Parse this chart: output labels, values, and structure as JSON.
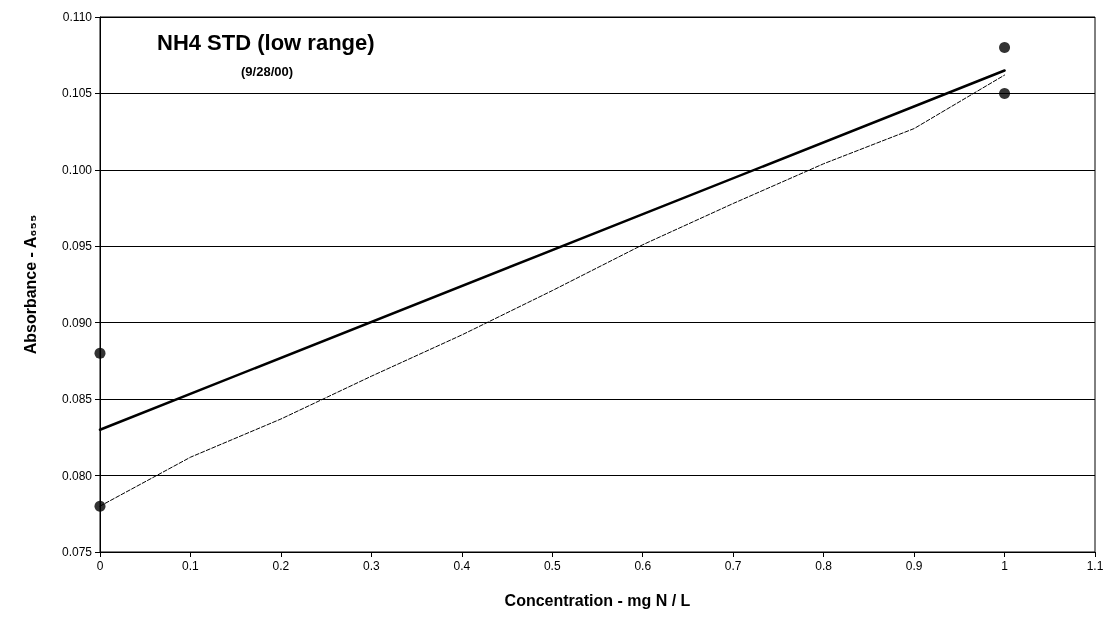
{
  "chart_data": {
    "type": "scatter",
    "title": "NH4 STD (low range)",
    "subtitle": "(9/28/00)",
    "xlabel": "Concentration - mg N / L",
    "ylabel": "Absorbance - A₆₅₅",
    "series": [
      {
        "color": "#000000",
        "marker": "circle",
        "x": [
          0,
          0,
          1,
          1
        ],
        "values": [
          0.088,
          0.078,
          0.108,
          0.105
        ]
      },
      {
        "type": "line",
        "color": "#000000",
        "marker": "none",
        "line_style": "solid",
        "x": [
          0,
          1
        ],
        "values": [
          0.083,
          0.1065
        ]
      },
      {
        "type": "line",
        "color": "#000000",
        "marker": "none",
        "line_style": "dashed",
        "x": [
          0,
          0.1,
          0.2,
          0.3,
          0.4,
          0.5,
          0.6,
          0.7,
          0.8,
          0.9,
          1
        ],
        "values": [
          0.078,
          0.0812,
          0.0837,
          0.0865,
          0.0892,
          0.0921,
          0.0951,
          0.0978,
          0.1004,
          0.1027,
          0.1062
        ]
      }
    ],
    "xlim": [
      0,
      1.1
    ],
    "xticks": [
      0,
      0.1,
      0.2,
      0.3,
      0.4,
      0.5,
      0.6,
      0.7,
      0.8,
      0.9,
      1,
      1.1
    ],
    "ylim": [
      0.075,
      0.11
    ],
    "yticks": [
      {
        "value": 0.075,
        "label": "0.075"
      },
      {
        "value": 0.08,
        "label": "0.080"
      },
      {
        "value": 0.085,
        "label": "0.085"
      },
      {
        "value": 0.09,
        "label": "0.090"
      },
      {
        "value": 0.095,
        "label": "0.095"
      },
      {
        "value": 0.1,
        "label": "0.100"
      },
      {
        "value": 0.105,
        "label": "0.105"
      },
      {
        "value": 0.11,
        "label": "0.110"
      }
    ],
    "grid": "y"
  }
}
